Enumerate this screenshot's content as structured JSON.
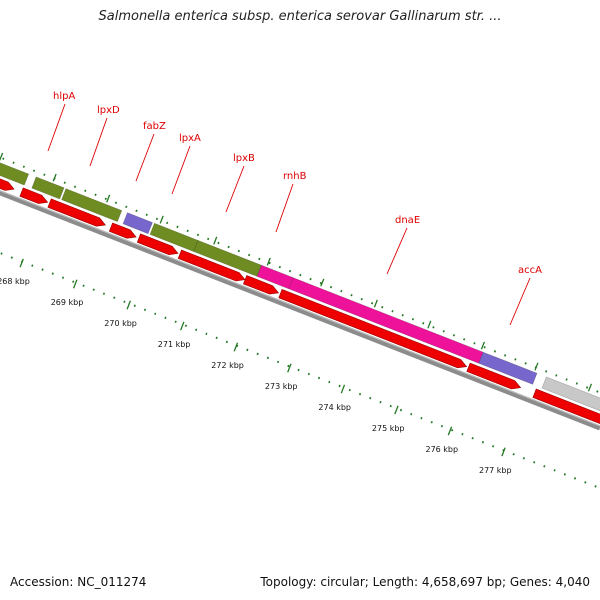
{
  "header": {
    "title": "Salmonella enterica subsp. enterica serovar Gallinarum str. ..."
  },
  "footer": {
    "accession": "Accession: NC_011274",
    "summary": "Topology: circular; Length: 4,658,697 bp; Genes: 4,040"
  },
  "colors": {
    "background": "#ffffff",
    "backbone": "#8c8c8c",
    "cds_red": "#ee0000",
    "olive": "#6e8c22",
    "lavender": "#7766cc",
    "magenta": "#ee1199",
    "grey_feature": "#c8c8c8",
    "label_red": "#dd0000",
    "tick_green": "#227722"
  },
  "gene_labels": [
    {
      "name": "hlpA"
    },
    {
      "name": "lpxD"
    },
    {
      "name": "fabZ"
    },
    {
      "name": "lpxA"
    },
    {
      "name": "lpxB"
    },
    {
      "name": "rnhB"
    },
    {
      "name": "dnaE"
    },
    {
      "name": "accA"
    }
  ],
  "scale_ticks": [
    "268 kbp",
    "269 kbp",
    "270 kbp",
    "271 kbp",
    "272 kbp",
    "273 kbp",
    "274 kbp",
    "275 kbp",
    "276 kbp",
    "277 kbp"
  ]
}
